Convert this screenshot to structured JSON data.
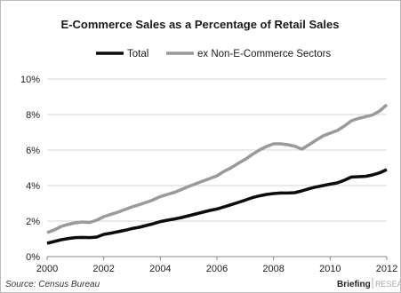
{
  "colors": {
    "total": "#0c0c0c",
    "ex_sectors": "#9a9a9a",
    "grid": "#d4d4d4",
    "axis": "#8a8a8a"
  },
  "footer": {
    "source": "Source: Census Bureau",
    "brand": "Briefing",
    "brand_sub": "RESEARC"
  },
  "chart_data": {
    "type": "line",
    "title": "E-Commerce Sales as a Percentage of Retail Sales",
    "xlabel": "",
    "ylabel": "",
    "xlim": [
      2000,
      2012
    ],
    "ylim": [
      0,
      10
    ],
    "x_ticks": [
      2000,
      2002,
      2004,
      2006,
      2008,
      2010,
      2012
    ],
    "x_tick_labels": [
      "2000",
      "2002",
      "2004",
      "2006",
      "2008",
      "2010",
      "2012"
    ],
    "y_ticks": [
      0,
      2,
      4,
      6,
      8,
      10
    ],
    "y_tick_labels": [
      "0%",
      "2%",
      "4%",
      "6%",
      "8%",
      "10%"
    ],
    "grid": "horizontal",
    "legend_position": "top",
    "x": [
      2000.0,
      2000.25,
      2000.5,
      2000.75,
      2001.0,
      2001.25,
      2001.5,
      2001.75,
      2002.0,
      2002.25,
      2002.5,
      2002.75,
      2003.0,
      2003.25,
      2003.5,
      2003.75,
      2004.0,
      2004.25,
      2004.5,
      2004.75,
      2005.0,
      2005.25,
      2005.5,
      2005.75,
      2006.0,
      2006.25,
      2006.5,
      2006.75,
      2007.0,
      2007.25,
      2007.5,
      2007.75,
      2008.0,
      2008.25,
      2008.5,
      2008.75,
      2009.0,
      2009.25,
      2009.5,
      2009.75,
      2010.0,
      2010.25,
      2010.5,
      2010.75,
      2011.0,
      2011.25,
      2011.5,
      2011.75,
      2012.0
    ],
    "series": [
      {
        "name": "Total",
        "values": [
          0.75,
          0.85,
          0.95,
          1.02,
          1.07,
          1.08,
          1.07,
          1.1,
          1.25,
          1.32,
          1.4,
          1.48,
          1.58,
          1.65,
          1.75,
          1.85,
          1.97,
          2.05,
          2.12,
          2.2,
          2.3,
          2.4,
          2.5,
          2.6,
          2.68,
          2.8,
          2.92,
          3.05,
          3.18,
          3.32,
          3.42,
          3.5,
          3.55,
          3.58,
          3.58,
          3.6,
          3.7,
          3.82,
          3.92,
          4.0,
          4.08,
          4.15,
          4.3,
          4.48,
          4.5,
          4.52,
          4.6,
          4.72,
          4.9
        ]
      },
      {
        "name": "ex Non-E-Commerce Sectors",
        "values": [
          1.35,
          1.5,
          1.7,
          1.82,
          1.9,
          1.95,
          1.92,
          2.05,
          2.25,
          2.38,
          2.5,
          2.65,
          2.8,
          2.92,
          3.05,
          3.2,
          3.38,
          3.5,
          3.62,
          3.78,
          3.95,
          4.1,
          4.25,
          4.4,
          4.55,
          4.8,
          5.0,
          5.25,
          5.48,
          5.75,
          6.0,
          6.2,
          6.35,
          6.35,
          6.3,
          6.22,
          6.05,
          6.3,
          6.55,
          6.8,
          6.95,
          7.1,
          7.35,
          7.65,
          7.78,
          7.88,
          7.98,
          8.2,
          8.55
        ]
      }
    ]
  }
}
